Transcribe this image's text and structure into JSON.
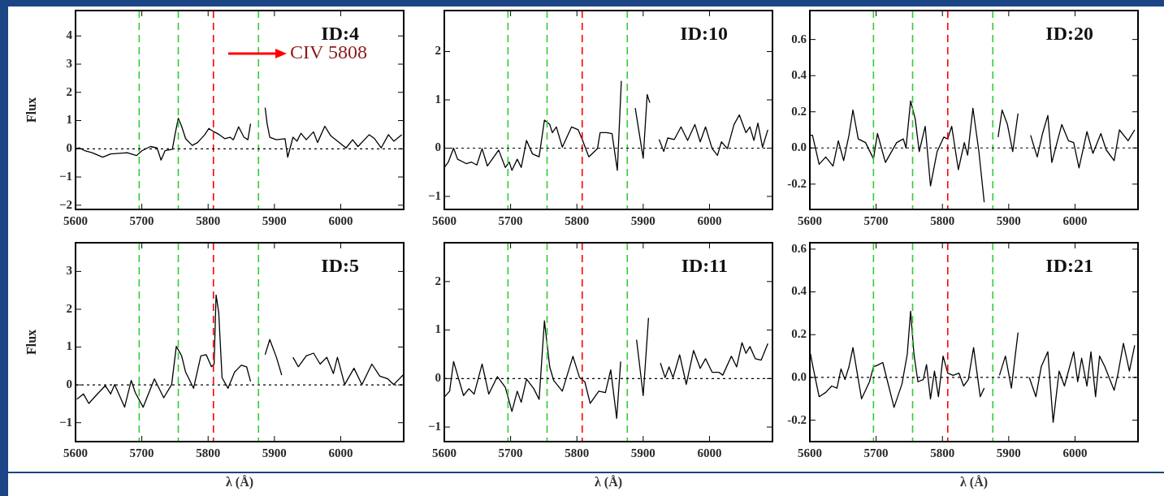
{
  "chart_data": [
    {
      "type": "line",
      "title": "ID:4",
      "ylabel": "Flux",
      "annotations": [
        "CIV 5808"
      ],
      "color": "#000000",
      "marker": "none",
      "line_style": "solid",
      "xlim": [
        5600,
        6095
      ],
      "xticks": [
        5600,
        5700,
        5800,
        5900,
        6000
      ],
      "ylim": [
        -2.15,
        4.9
      ],
      "yticks": [
        -2,
        -1,
        0,
        1,
        2,
        3,
        4
      ],
      "ref_lines": [
        {
          "axis": "x",
          "value": 5696,
          "color": "#33cc33",
          "line_style": "dashed"
        },
        {
          "axis": "x",
          "value": 5755,
          "color": "#33cc33",
          "line_style": "dashed"
        },
        {
          "axis": "x",
          "value": 5808,
          "color": "#ff0000",
          "line_style": "dashed"
        },
        {
          "axis": "x",
          "value": 5876,
          "color": "#33cc33",
          "line_style": "dashed"
        },
        {
          "axis": "y",
          "value": 0,
          "color": "#000000",
          "line_style": "dotted"
        }
      ],
      "x": [
        5600,
        5606,
        5614,
        5625,
        5641,
        5653,
        5666,
        5678,
        5692,
        5700,
        5713,
        5723,
        5729,
        5735,
        5746,
        5750,
        5755,
        5760,
        5766,
        5776,
        5784,
        5795,
        5801,
        5809,
        5817,
        5825,
        5833,
        5838,
        5846,
        5854,
        5860,
        5864,
        5866,
        5883,
        5886,
        5889,
        5893,
        5903,
        5916,
        5920,
        5928,
        5934,
        5940,
        5948,
        5959,
        5965,
        5976,
        5985,
        5998,
        6008,
        6018,
        6026,
        6043,
        6051,
        6061,
        6072,
        6080,
        6092
      ],
      "values": [
        0,
        0.03,
        -0.07,
        -0.14,
        -0.3,
        -0.18,
        -0.16,
        -0.14,
        -0.24,
        -0.07,
        0.08,
        0.03,
        -0.4,
        -0.07,
        -0.02,
        0.5,
        1.08,
        0.8,
        0.36,
        0.12,
        0.22,
        0.5,
        0.72,
        0.6,
        0.5,
        0.36,
        0.41,
        0.32,
        0.78,
        0.41,
        0.32,
        0.89,
        null,
        null,
        1.46,
        0.89,
        0.41,
        0.32,
        0.36,
        -0.3,
        0.41,
        0.27,
        0.55,
        0.32,
        0.6,
        0.22,
        0.8,
        0.46,
        0.22,
        0.03,
        0.32,
        0.08,
        0.5,
        0.36,
        0.03,
        0.5,
        0.27,
        0.5
      ]
    },
    {
      "type": "line",
      "title": "ID:10",
      "color": "#000000",
      "marker": "none",
      "line_style": "solid",
      "xlim": [
        5600,
        6095
      ],
      "xticks": [
        5600,
        5700,
        5800,
        5900,
        6000
      ],
      "ylim": [
        -1.27,
        2.85
      ],
      "yticks": [
        -1,
        0,
        1,
        2
      ],
      "ref_lines": [
        {
          "axis": "x",
          "value": 5696,
          "color": "#33cc33",
          "line_style": "dashed"
        },
        {
          "axis": "x",
          "value": 5755,
          "color": "#33cc33",
          "line_style": "dashed"
        },
        {
          "axis": "x",
          "value": 5808,
          "color": "#ff0000",
          "line_style": "dashed"
        },
        {
          "axis": "x",
          "value": 5876,
          "color": "#33cc33",
          "line_style": "dashed"
        },
        {
          "axis": "y",
          "value": 0,
          "color": "#000000",
          "line_style": "dotted"
        }
      ],
      "x": [
        5600,
        5606,
        5614,
        5620,
        5633,
        5641,
        5649,
        5657,
        5665,
        5682,
        5692,
        5698,
        5702,
        5710,
        5716,
        5724,
        5733,
        5743,
        5751,
        5759,
        5763,
        5769,
        5778,
        5792,
        5802,
        5808,
        5818,
        5831,
        5835,
        5845,
        5853,
        5861,
        5867,
        5869,
        5882,
        5888,
        5900,
        5906,
        5910,
        5916,
        5920,
        5924,
        5931,
        5937,
        5947,
        5957,
        5967,
        5978,
        5986,
        5994,
        6004,
        6012,
        6018,
        6027,
        6037,
        6045,
        6055,
        6061,
        6067,
        6073,
        6080,
        6088
      ],
      "values": [
        -0.4,
        -0.29,
        0,
        -0.23,
        -0.32,
        -0.29,
        -0.35,
        -0.01,
        -0.37,
        -0.04,
        -0.4,
        -0.29,
        -0.46,
        -0.23,
        -0.4,
        0.16,
        -0.12,
        -0.18,
        0.58,
        0.49,
        0.32,
        0.44,
        0.02,
        0.44,
        0.38,
        0.18,
        -0.18,
        -0.01,
        0.32,
        0.32,
        0.3,
        -0.46,
        1.39,
        null,
        null,
        0.83,
        -0.21,
        1.11,
        0.94,
        null,
        null,
        0.18,
        -0.07,
        0.21,
        0.18,
        0.44,
        0.16,
        0.49,
        0.13,
        0.44,
        -0.01,
        -0.15,
        0.13,
        -0.01,
        0.49,
        0.69,
        0.32,
        0.44,
        0.16,
        0.52,
        0.02,
        0.38
      ]
    },
    {
      "type": "line",
      "title": "ID:20",
      "color": "#000000",
      "marker": "none",
      "line_style": "solid",
      "xlim": [
        5600,
        6095
      ],
      "xticks": [
        5600,
        5700,
        5800,
        5900,
        6000
      ],
      "ylim": [
        -0.34,
        0.76
      ],
      "yticks": [
        {
          "value": -0.2,
          "label": "-0.2"
        },
        {
          "value": 0,
          "label": "0.0"
        },
        {
          "value": 0.2,
          "label": "0.2"
        },
        {
          "value": 0.4,
          "label": "0.4"
        },
        {
          "value": 0.6,
          "label": "0.6"
        }
      ],
      "ref_lines": [
        {
          "axis": "x",
          "value": 5696,
          "color": "#33cc33",
          "line_style": "dashed"
        },
        {
          "axis": "x",
          "value": 5755,
          "color": "#33cc33",
          "line_style": "dashed"
        },
        {
          "axis": "x",
          "value": 5808,
          "color": "#ff0000",
          "line_style": "dashed"
        },
        {
          "axis": "x",
          "value": 5876,
          "color": "#33cc33",
          "line_style": "dashed"
        },
        {
          "axis": "y",
          "value": 0,
          "color": "#000000",
          "line_style": "dotted"
        }
      ],
      "x": [
        5600,
        5604,
        5614,
        5624,
        5635,
        5643,
        5651,
        5659,
        5665,
        5673,
        5684,
        5696,
        5702,
        5714,
        5731,
        5741,
        5745,
        5752,
        5759,
        5765,
        5774,
        5782,
        5792,
        5802,
        5808,
        5814,
        5824,
        5833,
        5838,
        5846,
        5855,
        5863,
        5867,
        5880,
        5884,
        5890,
        5898,
        5906,
        5914,
        5922,
        5927,
        5933,
        5943,
        5951,
        5959,
        5965,
        5980,
        5990,
        5998,
        6006,
        6018,
        6027,
        6039,
        6047,
        6059,
        6067,
        6080,
        6090
      ],
      "values": [
        0.07,
        0.07,
        -0.09,
        -0.05,
        -0.1,
        0.04,
        -0.07,
        0.07,
        0.21,
        0.05,
        0.03,
        -0.06,
        0.08,
        -0.08,
        0.03,
        0.05,
        0,
        0.26,
        0.16,
        -0.02,
        0.12,
        -0.21,
        -0.02,
        0.06,
        0.05,
        0.12,
        -0.12,
        0.03,
        -0.04,
        0.22,
        -0.02,
        -0.3,
        null,
        null,
        0.06,
        0.21,
        0.13,
        -0.02,
        0.19,
        null,
        null,
        0.07,
        -0.05,
        0.08,
        0.18,
        -0.08,
        0.13,
        0.04,
        0.03,
        -0.11,
        0.09,
        -0.03,
        0.08,
        -0.01,
        -0.07,
        0.1,
        0.04,
        0.1
      ]
    },
    {
      "type": "line",
      "title": "ID:5",
      "ylabel": "Flux",
      "xlabel": "λ (Å)",
      "color": "#000000",
      "marker": "none",
      "line_style": "solid",
      "xlim": [
        5600,
        6095
      ],
      "xticks": [
        5600,
        5700,
        5800,
        5900,
        6000
      ],
      "ylim": [
        -1.5,
        3.76
      ],
      "yticks": [
        -1,
        0,
        1,
        2,
        3
      ],
      "ref_lines": [
        {
          "axis": "x",
          "value": 5696,
          "color": "#33cc33",
          "line_style": "dashed"
        },
        {
          "axis": "x",
          "value": 5755,
          "color": "#33cc33",
          "line_style": "dashed"
        },
        {
          "axis": "x",
          "value": 5808,
          "color": "#ff0000",
          "line_style": "dashed"
        },
        {
          "axis": "x",
          "value": 5876,
          "color": "#33cc33",
          "line_style": "dashed"
        },
        {
          "axis": "y",
          "value": 0,
          "color": "#000000",
          "line_style": "dotted"
        }
      ],
      "x": [
        5602,
        5612,
        5620,
        5633,
        5645,
        5653,
        5659,
        5674,
        5684,
        5690,
        5702,
        5719,
        5733,
        5745,
        5752,
        5760,
        5766,
        5778,
        5789,
        5797,
        5805,
        5809,
        5812,
        5816,
        5821,
        5830,
        5840,
        5850,
        5858,
        5864,
        5868,
        5883,
        5886,
        5893,
        5903,
        5911,
        5920,
        5928,
        5936,
        5948,
        5959,
        5969,
        5979,
        5989,
        5995,
        6006,
        6020,
        6032,
        6047,
        6059,
        6071,
        6080,
        6094
      ],
      "values": [
        -0.38,
        -0.24,
        -0.49,
        -0.24,
        -0.02,
        -0.24,
        0.01,
        -0.59,
        0.12,
        -0.2,
        -0.59,
        0.16,
        -0.34,
        0.01,
        1.02,
        0.77,
        0.34,
        -0.09,
        0.77,
        0.8,
        0.48,
        0.55,
        2.38,
        1.91,
        0.19,
        -0.09,
        0.34,
        0.52,
        0.48,
        0.09,
        null,
        null,
        0.8,
        1.2,
        0.73,
        0.26,
        null,
        0.73,
        0.48,
        0.77,
        0.84,
        0.55,
        0.73,
        0.3,
        0.73,
        0.01,
        0.44,
        0.01,
        0.55,
        0.23,
        0.16,
        0.01,
        0.26
      ]
    },
    {
      "type": "line",
      "title": "ID:11",
      "xlabel": "λ (Å)",
      "color": "#000000",
      "marker": "none",
      "line_style": "solid",
      "xlim": [
        5600,
        6095
      ],
      "xticks": [
        5600,
        5700,
        5800,
        5900,
        6000
      ],
      "ylim": [
        -1.3,
        2.8
      ],
      "yticks": [
        -1,
        0,
        1,
        2
      ],
      "ref_lines": [
        {
          "axis": "x",
          "value": 5696,
          "color": "#33cc33",
          "line_style": "dashed"
        },
        {
          "axis": "x",
          "value": 5755,
          "color": "#33cc33",
          "line_style": "dashed"
        },
        {
          "axis": "x",
          "value": 5808,
          "color": "#ff0000",
          "line_style": "dashed"
        },
        {
          "axis": "x",
          "value": 5876,
          "color": "#33cc33",
          "line_style": "dashed"
        },
        {
          "axis": "y",
          "value": 0,
          "color": "#000000",
          "line_style": "dotted"
        }
      ],
      "x": [
        5601,
        5608,
        5614,
        5629,
        5637,
        5645,
        5657,
        5667,
        5680,
        5692,
        5702,
        5710,
        5716,
        5724,
        5735,
        5743,
        5751,
        5759,
        5765,
        5778,
        5794,
        5804,
        5812,
        5820,
        5833,
        5843,
        5851,
        5860,
        5866,
        5869,
        5882,
        5890,
        5900,
        5908,
        5912,
        5920,
        5926,
        5933,
        5939,
        5945,
        5955,
        5965,
        5976,
        5986,
        5994,
        6004,
        6014,
        6020,
        6033,
        6041,
        6049,
        6055,
        6061,
        6069,
        6078,
        6088
      ],
      "values": [
        -0.37,
        -0.26,
        0.35,
        -0.35,
        -0.21,
        -0.32,
        0.3,
        -0.32,
        0.04,
        -0.18,
        -0.68,
        -0.26,
        -0.49,
        -0.01,
        -0.21,
        -0.43,
        1.19,
        0.24,
        -0.04,
        -0.26,
        0.46,
        0.02,
        -0.07,
        -0.51,
        -0.26,
        -0.29,
        0.18,
        -0.82,
        0.35,
        null,
        null,
        0.8,
        -0.35,
        1.25,
        null,
        null,
        0.32,
        0.02,
        0.24,
        0.02,
        0.49,
        -0.12,
        0.58,
        0.21,
        0.41,
        0.13,
        0.13,
        0.07,
        0.46,
        0.24,
        0.74,
        0.52,
        0.66,
        0.41,
        0.38,
        0.72
      ]
    },
    {
      "type": "line",
      "title": "ID:21",
      "xlabel": "λ (Å)",
      "color": "#000000",
      "marker": "none",
      "line_style": "solid",
      "xlim": [
        5600,
        6095
      ],
      "xticks": [
        5600,
        5700,
        5800,
        5900,
        6000
      ],
      "ylim": [
        -0.3,
        0.63
      ],
      "yticks": [
        {
          "value": -0.2,
          "label": "-0.2"
        },
        {
          "value": 0,
          "label": "0.0"
        },
        {
          "value": 0.2,
          "label": "0.2"
        },
        {
          "value": 0.4,
          "label": "0.4"
        },
        {
          "value": 0.6,
          "label": "0.6"
        }
      ],
      "ref_lines": [
        {
          "axis": "x",
          "value": 5696,
          "color": "#33cc33",
          "line_style": "dashed"
        },
        {
          "axis": "x",
          "value": 5755,
          "color": "#33cc33",
          "line_style": "dashed"
        },
        {
          "axis": "x",
          "value": 5808,
          "color": "#ff0000",
          "line_style": "dashed"
        },
        {
          "axis": "x",
          "value": 5876,
          "color": "#33cc33",
          "line_style": "dashed"
        },
        {
          "axis": "y",
          "value": 0,
          "color": "#000000",
          "line_style": "dotted"
        }
      ],
      "x": [
        5601,
        5604,
        5614,
        5624,
        5633,
        5641,
        5647,
        5653,
        5659,
        5665,
        5678,
        5690,
        5696,
        5704,
        5710,
        5727,
        5739,
        5747,
        5752,
        5757,
        5763,
        5771,
        5776,
        5782,
        5788,
        5794,
        5801,
        5808,
        5816,
        5825,
        5832,
        5839,
        5847,
        5857,
        5863,
        5867,
        5882,
        5886,
        5895,
        5904,
        5914,
        5920,
        5924,
        5931,
        5941,
        5949,
        5959,
        5967,
        5976,
        5984,
        5998,
        6004,
        6010,
        6018,
        6024,
        6031,
        6037,
        6045,
        6059,
        6065,
        6073,
        6082,
        6090
      ],
      "values": [
        0.11,
        0.06,
        -0.09,
        -0.07,
        -0.04,
        -0.05,
        0.04,
        -0.01,
        0.05,
        0.14,
        -0.1,
        -0.02,
        0.05,
        0.06,
        0.07,
        -0.14,
        -0.03,
        0.11,
        0.31,
        0.11,
        -0.02,
        -0.01,
        0.06,
        -0.1,
        0.03,
        -0.09,
        0.1,
        0.02,
        0.01,
        0.02,
        -0.04,
        -0.01,
        0.14,
        -0.09,
        -0.05,
        null,
        null,
        0.01,
        0.1,
        -0.05,
        0.21,
        null,
        null,
        0,
        -0.09,
        0.05,
        0.12,
        -0.21,
        0.03,
        -0.04,
        0.12,
        -0.02,
        0.09,
        -0.04,
        0.12,
        -0.09,
        0.1,
        0.05,
        -0.06,
        0.02,
        0.16,
        0.03,
        0.15
      ]
    }
  ]
}
